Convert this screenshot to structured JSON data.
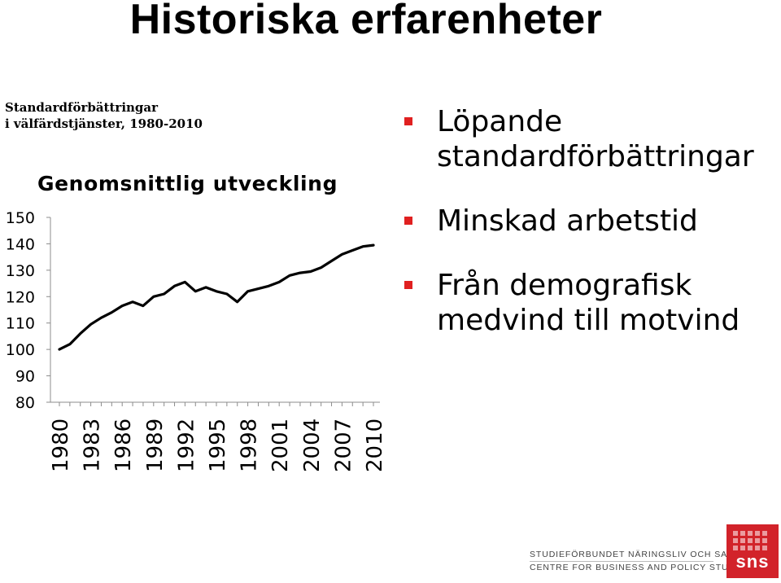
{
  "slide": {
    "title": "Historiska erfarenheter"
  },
  "chart_caption": {
    "line1": "Standardförbättringar",
    "line2": "i välfärdstjänster, 1980-2010"
  },
  "chart_data": {
    "type": "line",
    "title": "Genomsnittlig utveckling",
    "xlabel": "",
    "ylabel": "",
    "ylim": [
      80,
      150
    ],
    "yticks": [
      80,
      90,
      100,
      110,
      120,
      130,
      140,
      150
    ],
    "xticks": [
      "1980",
      "1983",
      "1986",
      "1989",
      "1992",
      "1995",
      "1998",
      "2001",
      "2004",
      "2007",
      "2010"
    ],
    "x": [
      1980,
      1981,
      1982,
      1983,
      1984,
      1985,
      1986,
      1987,
      1988,
      1989,
      1990,
      1991,
      1992,
      1993,
      1994,
      1995,
      1996,
      1997,
      1998,
      1999,
      2000,
      2001,
      2002,
      2003,
      2004,
      2005,
      2006,
      2007,
      2008,
      2009,
      2010
    ],
    "series": [
      {
        "name": "",
        "color": "#000000",
        "values": [
          100,
          102,
          106,
          109.5,
          112,
          114,
          116.5,
          118,
          116.5,
          120,
          121,
          124,
          125.5,
          122,
          123.5,
          122,
          121,
          118,
          122,
          123,
          124,
          125.5,
          128,
          129,
          129.5,
          131,
          133.5,
          136,
          137.5,
          139,
          139.5
        ]
      }
    ],
    "grid": false,
    "legend": "none"
  },
  "bullets": [
    {
      "text_lines": [
        "Löpande",
        "standardförbättringar"
      ]
    },
    {
      "text_lines": [
        "Minskad arbetstid"
      ]
    },
    {
      "text_lines": [
        "Från demografisk",
        "medvind till motvind"
      ]
    }
  ],
  "logo": {
    "org_line1": "STUDIEFÖRBUNDET NÄRINGSLIV OCH SAMHÄLLE",
    "org_line2": "CENTRE FOR BUSINESS AND POLICY STUDIES",
    "mark": "sns",
    "brand_color": "#d2232a"
  },
  "colors": {
    "bullet_marker": "#e02020",
    "line": "#000000"
  }
}
